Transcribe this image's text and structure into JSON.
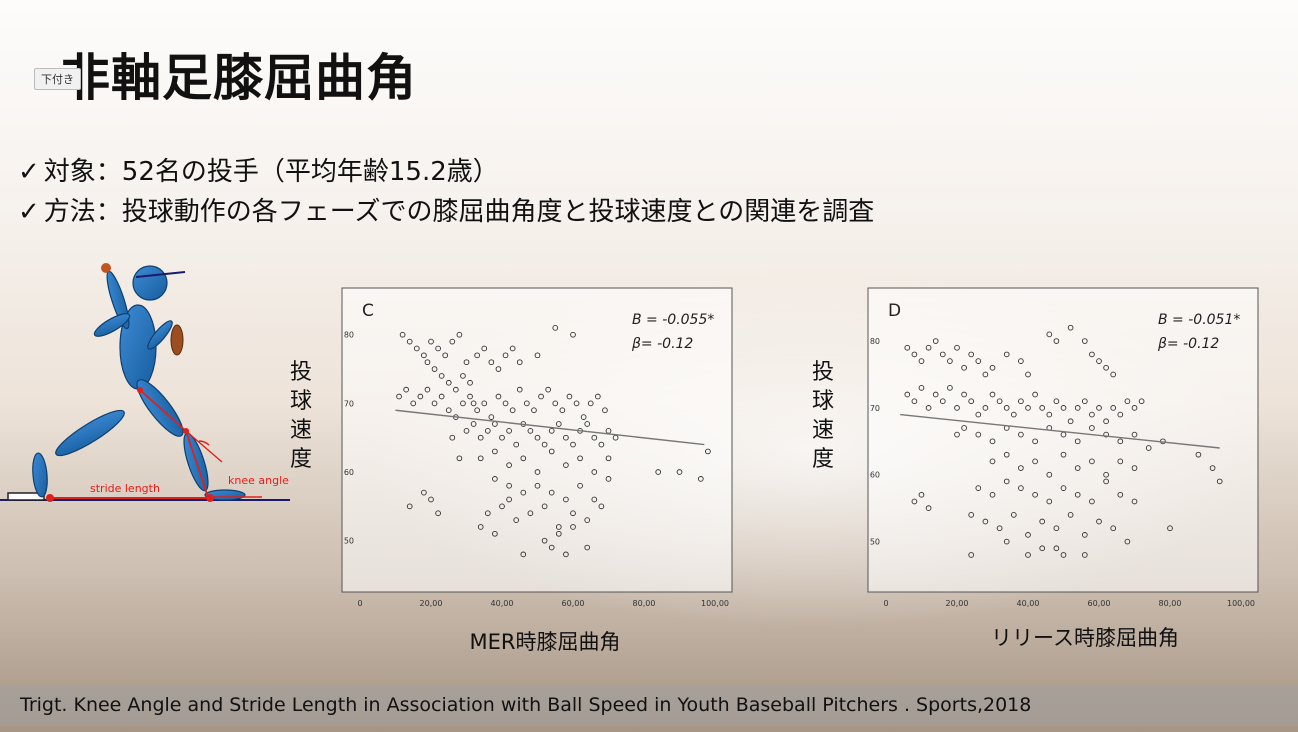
{
  "slide": {
    "title": "非軸足膝屈曲角",
    "tag": "下付き",
    "bullets": [
      {
        "check": "✓",
        "text": "対象：52名の投手（平均年齢15.2歳）"
      },
      {
        "check": "✓",
        "text": "方法：投球動作の各フェーズでの膝屈曲角度と投球速度との関連を調査"
      }
    ],
    "figure": {
      "stride_label": "stride length",
      "knee_label": "knee angle"
    },
    "footer": "Trigt. Knee Angle and Stride Length in Association with Ball Speed in Youth Baseball Pitchers . Sports,2018"
  },
  "chart_data": [
    {
      "type": "scatter",
      "panel": "C",
      "ylabel": "投球速度",
      "xlabel": "MER時膝屈曲角",
      "stat_b": "B = -0.055*",
      "stat_beta": "β= -0.12",
      "xlim": [
        0,
        100
      ],
      "ylim": [
        45,
        82
      ],
      "xticks": [
        "0",
        "20,00",
        "40,00",
        "60,00",
        "80,00",
        "100,00"
      ],
      "yticks": [
        "50",
        "60",
        "70",
        "80"
      ],
      "trend": [
        [
          10,
          69
        ],
        [
          97,
          64
        ]
      ],
      "points": [
        [
          12,
          80
        ],
        [
          14,
          79
        ],
        [
          16,
          78
        ],
        [
          18,
          77
        ],
        [
          19,
          76
        ],
        [
          20,
          79
        ],
        [
          22,
          78
        ],
        [
          24,
          77
        ],
        [
          26,
          79
        ],
        [
          28,
          80
        ],
        [
          30,
          76
        ],
        [
          21,
          75
        ],
        [
          23,
          74
        ],
        [
          25,
          73
        ],
        [
          27,
          72
        ],
        [
          29,
          74
        ],
        [
          31,
          73
        ],
        [
          33,
          77
        ],
        [
          35,
          78
        ],
        [
          37,
          76
        ],
        [
          39,
          75
        ],
        [
          41,
          77
        ],
        [
          43,
          78
        ],
        [
          45,
          76
        ],
        [
          50,
          77
        ],
        [
          55,
          81
        ],
        [
          60,
          80
        ],
        [
          11,
          71
        ],
        [
          13,
          72
        ],
        [
          15,
          70
        ],
        [
          17,
          71
        ],
        [
          19,
          72
        ],
        [
          21,
          70
        ],
        [
          23,
          71
        ],
        [
          25,
          69
        ],
        [
          27,
          68
        ],
        [
          29,
          70
        ],
        [
          31,
          71
        ],
        [
          33,
          69
        ],
        [
          35,
          70
        ],
        [
          37,
          68
        ],
        [
          39,
          71
        ],
        [
          41,
          70
        ],
        [
          43,
          69
        ],
        [
          45,
          72
        ],
        [
          47,
          70
        ],
        [
          49,
          69
        ],
        [
          51,
          71
        ],
        [
          53,
          72
        ],
        [
          55,
          70
        ],
        [
          57,
          69
        ],
        [
          59,
          71
        ],
        [
          61,
          70
        ],
        [
          63,
          68
        ],
        [
          65,
          70
        ],
        [
          67,
          71
        ],
        [
          69,
          69
        ],
        [
          30,
          66
        ],
        [
          32,
          67
        ],
        [
          34,
          65
        ],
        [
          36,
          66
        ],
        [
          38,
          67
        ],
        [
          40,
          65
        ],
        [
          42,
          66
        ],
        [
          44,
          64
        ],
        [
          46,
          67
        ],
        [
          48,
          66
        ],
        [
          50,
          65
        ],
        [
          52,
          64
        ],
        [
          54,
          66
        ],
        [
          56,
          67
        ],
        [
          58,
          65
        ],
        [
          60,
          64
        ],
        [
          62,
          66
        ],
        [
          64,
          67
        ],
        [
          66,
          65
        ],
        [
          68,
          64
        ],
        [
          70,
          66
        ],
        [
          72,
          65
        ],
        [
          34,
          62
        ],
        [
          38,
          63
        ],
        [
          42,
          61
        ],
        [
          46,
          62
        ],
        [
          50,
          60
        ],
        [
          54,
          63
        ],
        [
          58,
          61
        ],
        [
          62,
          62
        ],
        [
          66,
          60
        ],
        [
          70,
          62
        ],
        [
          84,
          60
        ],
        [
          90,
          60
        ],
        [
          96,
          59
        ],
        [
          98,
          63
        ],
        [
          38,
          59
        ],
        [
          42,
          58
        ],
        [
          46,
          57
        ],
        [
          50,
          58
        ],
        [
          54,
          57
        ],
        [
          58,
          56
        ],
        [
          62,
          58
        ],
        [
          66,
          56
        ],
        [
          70,
          59
        ],
        [
          18,
          57
        ],
        [
          20,
          56
        ],
        [
          14,
          55
        ],
        [
          22,
          54
        ],
        [
          36,
          54
        ],
        [
          40,
          55
        ],
        [
          44,
          53
        ],
        [
          48,
          54
        ],
        [
          52,
          55
        ],
        [
          56,
          52
        ],
        [
          60,
          54
        ],
        [
          64,
          53
        ],
        [
          68,
          55
        ],
        [
          34,
          52
        ],
        [
          38,
          51
        ],
        [
          52,
          50
        ],
        [
          56,
          51
        ],
        [
          60,
          52
        ],
        [
          64,
          49
        ],
        [
          46,
          48
        ],
        [
          54,
          49
        ],
        [
          58,
          48
        ],
        [
          42,
          56
        ],
        [
          32,
          70
        ],
        [
          28,
          62
        ],
        [
          26,
          65
        ]
      ]
    },
    {
      "type": "scatter",
      "panel": "D",
      "ylabel": "投球速度",
      "xlabel": "リリース時膝屈曲角",
      "stat_b": "B = -0.051*",
      "stat_beta": "β= -0.12",
      "xlim": [
        0,
        100
      ],
      "ylim": [
        45,
        83
      ],
      "xticks": [
        "0",
        "20,00",
        "40,00",
        "60,00",
        "80,00",
        "100,00"
      ],
      "yticks": [
        "50",
        "60",
        "70",
        "80"
      ],
      "trend": [
        [
          4,
          69
        ],
        [
          94,
          64
        ]
      ],
      "points": [
        [
          6,
          79
        ],
        [
          8,
          78
        ],
        [
          10,
          77
        ],
        [
          12,
          79
        ],
        [
          14,
          80
        ],
        [
          16,
          78
        ],
        [
          18,
          77
        ],
        [
          20,
          79
        ],
        [
          22,
          76
        ],
        [
          24,
          78
        ],
        [
          26,
          77
        ],
        [
          28,
          75
        ],
        [
          30,
          76
        ],
        [
          34,
          78
        ],
        [
          38,
          77
        ],
        [
          40,
          75
        ],
        [
          46,
          81
        ],
        [
          48,
          80
        ],
        [
          52,
          82
        ],
        [
          56,
          80
        ],
        [
          58,
          78
        ],
        [
          60,
          77
        ],
        [
          62,
          76
        ],
        [
          64,
          75
        ],
        [
          6,
          72
        ],
        [
          8,
          71
        ],
        [
          10,
          73
        ],
        [
          12,
          70
        ],
        [
          14,
          72
        ],
        [
          16,
          71
        ],
        [
          18,
          73
        ],
        [
          20,
          70
        ],
        [
          22,
          72
        ],
        [
          24,
          71
        ],
        [
          26,
          69
        ],
        [
          28,
          70
        ],
        [
          30,
          72
        ],
        [
          32,
          71
        ],
        [
          34,
          70
        ],
        [
          36,
          69
        ],
        [
          38,
          71
        ],
        [
          40,
          70
        ],
        [
          42,
          72
        ],
        [
          44,
          70
        ],
        [
          46,
          69
        ],
        [
          48,
          71
        ],
        [
          50,
          70
        ],
        [
          52,
          68
        ],
        [
          54,
          70
        ],
        [
          56,
          71
        ],
        [
          58,
          69
        ],
        [
          60,
          70
        ],
        [
          62,
          68
        ],
        [
          64,
          70
        ],
        [
          66,
          69
        ],
        [
          68,
          71
        ],
        [
          70,
          70
        ],
        [
          72,
          71
        ],
        [
          20,
          66
        ],
        [
          22,
          67
        ],
        [
          26,
          66
        ],
        [
          30,
          65
        ],
        [
          34,
          67
        ],
        [
          38,
          66
        ],
        [
          42,
          65
        ],
        [
          46,
          67
        ],
        [
          50,
          66
        ],
        [
          54,
          65
        ],
        [
          58,
          67
        ],
        [
          62,
          66
        ],
        [
          66,
          65
        ],
        [
          70,
          66
        ],
        [
          74,
          64
        ],
        [
          78,
          65
        ],
        [
          88,
          63
        ],
        [
          92,
          61
        ],
        [
          94,
          59
        ],
        [
          30,
          62
        ],
        [
          34,
          63
        ],
        [
          38,
          61
        ],
        [
          42,
          62
        ],
        [
          46,
          60
        ],
        [
          50,
          63
        ],
        [
          54,
          61
        ],
        [
          58,
          62
        ],
        [
          62,
          60
        ],
        [
          66,
          62
        ],
        [
          70,
          61
        ],
        [
          26,
          58
        ],
        [
          30,
          57
        ],
        [
          34,
          59
        ],
        [
          38,
          58
        ],
        [
          42,
          57
        ],
        [
          46,
          56
        ],
        [
          50,
          58
        ],
        [
          54,
          57
        ],
        [
          58,
          56
        ],
        [
          62,
          59
        ],
        [
          66,
          57
        ],
        [
          70,
          56
        ],
        [
          8,
          56
        ],
        [
          12,
          55
        ],
        [
          10,
          57
        ],
        [
          24,
          54
        ],
        [
          28,
          53
        ],
        [
          32,
          52
        ],
        [
          36,
          54
        ],
        [
          40,
          51
        ],
        [
          44,
          53
        ],
        [
          48,
          52
        ],
        [
          52,
          54
        ],
        [
          56,
          51
        ],
        [
          60,
          53
        ],
        [
          64,
          52
        ],
        [
          68,
          50
        ],
        [
          80,
          52
        ],
        [
          34,
          50
        ],
        [
          44,
          49
        ],
        [
          48,
          49
        ],
        [
          50,
          48
        ],
        [
          56,
          48
        ],
        [
          24,
          48
        ],
        [
          40,
          48
        ]
      ]
    }
  ]
}
